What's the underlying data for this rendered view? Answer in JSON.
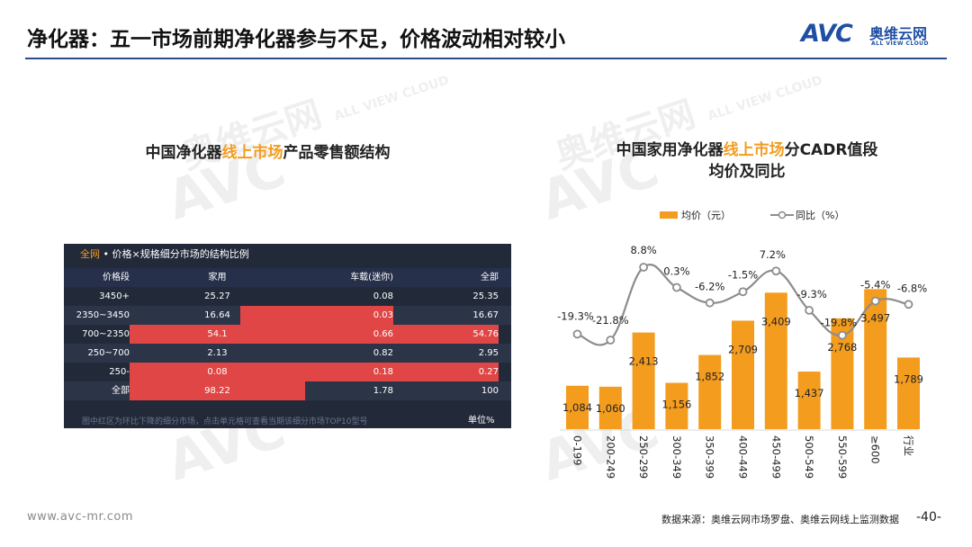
{
  "header": {
    "title": "净化器：五一市场前期净化器参与不足，价格波动相对较小",
    "logo_mark": "AVC",
    "logo_cn": "奥维云网",
    "logo_en": "ALL VIEW CLOUD"
  },
  "watermark": {
    "cn": "奥维云网",
    "en": "ALL VIEW CLOUD",
    "mark": "AVC"
  },
  "left_panel": {
    "title_pre": "中国净化器",
    "title_hl": "线上市场",
    "title_post": "产品零售额结构",
    "table": {
      "caption_hl": "全网",
      "caption": " • 价格×规格细分市场的结构比例",
      "headers": [
        "价格段",
        "家用",
        "车载(迷你)",
        "全部"
      ],
      "rows": [
        {
          "cells": [
            "3450+",
            "25.27",
            "0.08",
            "25.35"
          ],
          "red": [
            false,
            false,
            false
          ]
        },
        {
          "cells": [
            "2350~3450",
            "16.64",
            "0.03",
            "16.67"
          ],
          "red": [
            false,
            true,
            false
          ]
        },
        {
          "cells": [
            "700~2350",
            "54.1",
            "0.66",
            "54.76"
          ],
          "red": [
            true,
            true,
            true
          ]
        },
        {
          "cells": [
            "250~700",
            "2.13",
            "0.82",
            "2.95"
          ],
          "red": [
            false,
            false,
            false
          ]
        },
        {
          "cells": [
            "250-",
            "0.08",
            "0.18",
            "0.27"
          ],
          "red": [
            true,
            true,
            true
          ]
        },
        {
          "cells": [
            "全部",
            "98.22",
            "1.78",
            "100"
          ],
          "red": [
            true,
            false,
            false
          ]
        }
      ],
      "note": "图中红区为环比下降的细分市场，点击单元格可查看当期该细分市场TOP10型号",
      "unit": "单位%"
    }
  },
  "right_panel": {
    "title_pre": "中国家用净化器",
    "title_hl": "线上市场",
    "title_post": "分CADR值段",
    "title_line2": "均价及同比"
  },
  "chart_data": {
    "type": "bar",
    "categories": [
      "0-199",
      "200-249",
      "250-299",
      "300-349",
      "350-399",
      "400-449",
      "450-499",
      "500-549",
      "550-599",
      "≥600",
      "行业"
    ],
    "series": [
      {
        "name": "均价（元）",
        "type": "bar",
        "values": [
          1084,
          1060,
          2413,
          1156,
          1852,
          2709,
          3409,
          1437,
          2768,
          3497,
          1789
        ],
        "labels": [
          "1,084",
          "1,060",
          "2,413",
          "1,156",
          "1,852",
          "2,709",
          "3,409",
          "1,437",
          "2,768",
          "3,497",
          "1,789"
        ]
      },
      {
        "name": "同比（%）",
        "type": "line",
        "values": [
          -19.3,
          -21.8,
          8.8,
          0.3,
          -6.2,
          -1.5,
          7.2,
          -9.3,
          -19.8,
          -5.4,
          -6.8
        ],
        "labels": [
          "-19.3%",
          "-21.8%",
          "8.8%",
          "0.3%",
          "-6.2%",
          "-1.5%",
          "7.2%",
          "-9.3%",
          "-19.8%",
          "-5.4%",
          "-6.8%"
        ]
      }
    ],
    "legend_position": "top",
    "grid": false,
    "colors": {
      "bar": "#f39c1e",
      "line": "#8c8c8c",
      "marker_fill": "#ffffff"
    }
  },
  "footer": {
    "url": "www.avc-mr.com",
    "source": "数据来源：奥维云网市场罗盘、奥维云网线上监测数据",
    "page": "-40-"
  }
}
